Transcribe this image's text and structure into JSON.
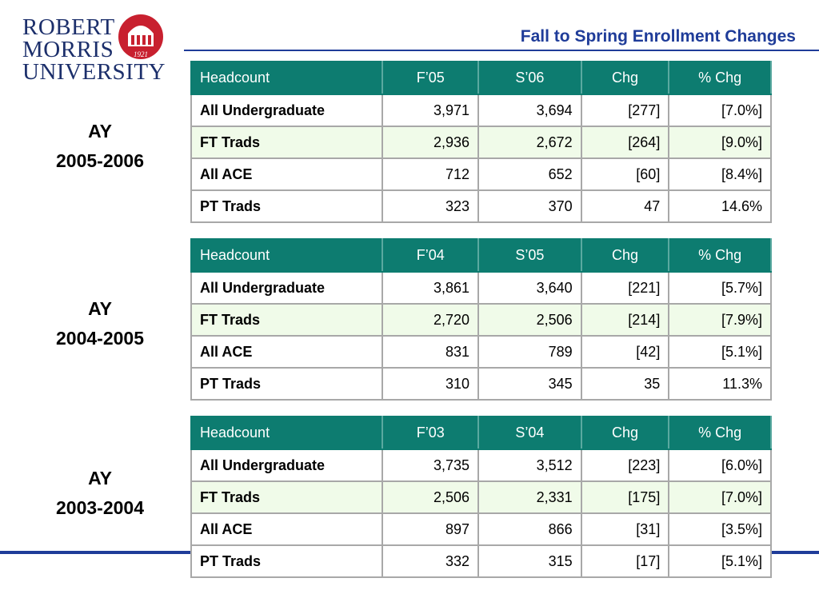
{
  "header": {
    "title": "Fall to Spring Enrollment Changes",
    "logo": {
      "lines": [
        "ROBERT",
        "MORRIS",
        "UNIVERSITY"
      ],
      "year": "1921"
    }
  },
  "sections": [
    {
      "ay": "AY",
      "years": "2005-2006",
      "table": {
        "header": [
          "Headcount",
          "F’05",
          "S’06",
          "Chg",
          "% Chg"
        ],
        "rows": [
          [
            "All Undergraduate",
            "3,971",
            "3,694",
            "[277]",
            "[7.0%]"
          ],
          [
            "FT Trads",
            "2,936",
            "2,672",
            "[264]",
            "[9.0%]"
          ],
          [
            "All ACE",
            "712",
            "652",
            "[60]",
            "[8.4%]"
          ],
          [
            "PT Trads",
            "323",
            "370",
            "47",
            "14.6%"
          ]
        ]
      }
    },
    {
      "ay": "AY",
      "years": "2004-2005",
      "table": {
        "header": [
          "Headcount",
          "F’04",
          "S’05",
          "Chg",
          "% Chg"
        ],
        "rows": [
          [
            "All Undergraduate",
            "3,861",
            "3,640",
            "[221]",
            "[5.7%]"
          ],
          [
            "FT Trads",
            "2,720",
            "2,506",
            "[214]",
            "[7.9%]"
          ],
          [
            "All ACE",
            "831",
            "789",
            "[42]",
            "[5.1%]"
          ],
          [
            "PT Trads",
            "310",
            "345",
            "35",
            "11.3%"
          ]
        ]
      }
    },
    {
      "ay": "AY",
      "years": "2003-2004",
      "table": {
        "header": [
          "Headcount",
          "F’03",
          "S’04",
          "Chg",
          "% Chg"
        ],
        "rows": [
          [
            "All Undergraduate",
            "3,735",
            "3,512",
            "[223]",
            "[6.0%]"
          ],
          [
            "FT Trads",
            "2,506",
            "2,331",
            "[175]",
            "[7.0%]"
          ],
          [
            "All ACE",
            "897",
            "866",
            "[31]",
            "[3.5%]"
          ],
          [
            "PT Trads",
            "332",
            "315",
            "[17]",
            "[5.1%]"
          ]
        ]
      }
    }
  ]
}
